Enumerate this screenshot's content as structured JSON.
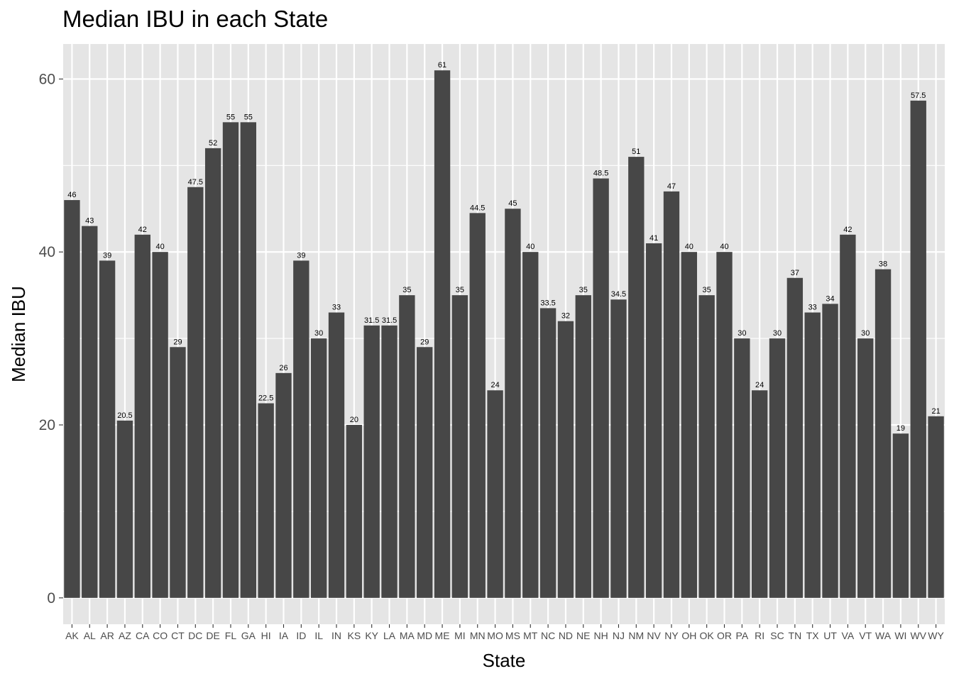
{
  "chart_data": {
    "type": "bar",
    "title": "Median IBU in each State",
    "xlabel": "State",
    "ylabel": "Median IBU",
    "ylim": [
      -3.05,
      64.05
    ],
    "y_ticks": [
      0,
      20,
      40,
      60
    ],
    "grid": true,
    "categories": [
      "AK",
      "AL",
      "AR",
      "AZ",
      "CA",
      "CO",
      "CT",
      "DC",
      "DE",
      "FL",
      "GA",
      "HI",
      "IA",
      "ID",
      "IL",
      "IN",
      "KS",
      "KY",
      "LA",
      "MA",
      "MD",
      "ME",
      "MI",
      "MN",
      "MO",
      "MS",
      "MT",
      "NC",
      "ND",
      "NE",
      "NH",
      "NJ",
      "NM",
      "NV",
      "NY",
      "OH",
      "OK",
      "OR",
      "PA",
      "RI",
      "SC",
      "TN",
      "TX",
      "UT",
      "VA",
      "VT",
      "WA",
      "WI",
      "WV",
      "WY"
    ],
    "values": [
      46,
      43,
      39,
      20.5,
      42,
      40,
      29,
      47.5,
      52,
      55,
      55,
      22.5,
      26,
      39,
      30,
      33,
      20,
      31.5,
      31.5,
      35,
      29,
      61,
      35,
      44.5,
      24,
      45,
      40,
      33.5,
      32,
      35,
      48.5,
      34.5,
      51,
      41,
      47,
      40,
      35,
      40,
      30,
      24,
      30,
      37,
      33,
      34,
      42,
      30,
      38,
      19,
      57.5,
      21
    ],
    "bar_color": "#474747",
    "panel_background": "#e5e5e5",
    "grid_color": "#ffffff"
  }
}
